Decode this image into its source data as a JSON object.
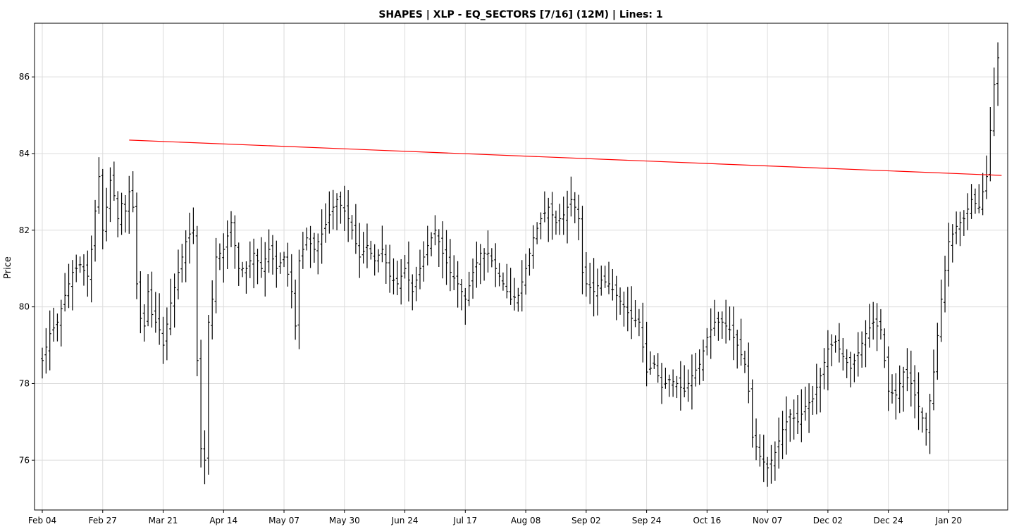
{
  "chart_data": {
    "type": "ohlc",
    "title": "SHAPES | XLP - EQ_SECTORS [7/16] (12M)  |  Lines: 1",
    "xlabel": "",
    "ylabel": "Price",
    "ylim": [
      74.7,
      87.4
    ],
    "yticks": [
      76,
      78,
      80,
      82,
      84,
      86
    ],
    "grid": true,
    "bar_color": "#000000",
    "line_color": "#ff0000",
    "x_ticks": [
      {
        "label": "Feb 04",
        "index": 0
      },
      {
        "label": "Feb 27",
        "index": 16
      },
      {
        "label": "Mar 21",
        "index": 32
      },
      {
        "label": "Apr 14",
        "index": 48
      },
      {
        "label": "May 07",
        "index": 64
      },
      {
        "label": "May 30",
        "index": 80
      },
      {
        "label": "Jun 24",
        "index": 96
      },
      {
        "label": "Jul 17",
        "index": 112
      },
      {
        "label": "Aug 08",
        "index": 128
      },
      {
        "label": "Sep 02",
        "index": 144
      },
      {
        "label": "Sep 24",
        "index": 160
      },
      {
        "label": "Oct 16",
        "index": 176
      },
      {
        "label": "Nov 07",
        "index": 192
      },
      {
        "label": "Dec 02",
        "index": 208
      },
      {
        "label": "Dec 24",
        "index": 224
      },
      {
        "label": "Jan 20",
        "index": 240
      }
    ],
    "close_path": [
      [
        0,
        78.6
      ],
      [
        2,
        79.3
      ],
      [
        4,
        79.6
      ],
      [
        6,
        80.3
      ],
      [
        8,
        80.9
      ],
      [
        10,
        81.1
      ],
      [
        12,
        80.8
      ],
      [
        13,
        81.5
      ],
      [
        14,
        82.5
      ],
      [
        15,
        83.4
      ],
      [
        16,
        82.0
      ],
      [
        17,
        82.6
      ],
      [
        18,
        83.3
      ],
      [
        19,
        82.9
      ],
      [
        20,
        82.3
      ],
      [
        21,
        82.7
      ],
      [
        22,
        82.5
      ],
      [
        23,
        83.0
      ],
      [
        24,
        82.6
      ],
      [
        25,
        80.6
      ],
      [
        26,
        79.7
      ],
      [
        27,
        79.5
      ],
      [
        28,
        80.4
      ],
      [
        29,
        79.8
      ],
      [
        31,
        79.4
      ],
      [
        32,
        79.0
      ],
      [
        34,
        80.1
      ],
      [
        36,
        80.9
      ],
      [
        38,
        81.7
      ],
      [
        39,
        81.9
      ],
      [
        40,
        82.0
      ],
      [
        41,
        78.6
      ],
      [
        42,
        76.3
      ],
      [
        43,
        76.0
      ],
      [
        44,
        79.6
      ],
      [
        45,
        80.2
      ],
      [
        46,
        81.3
      ],
      [
        48,
        81.5
      ],
      [
        50,
        82.2
      ],
      [
        52,
        81.0
      ],
      [
        54,
        81.0
      ],
      [
        56,
        81.4
      ],
      [
        58,
        81.0
      ],
      [
        60,
        81.5
      ],
      [
        62,
        81.0
      ],
      [
        64,
        81.3
      ],
      [
        66,
        80.4
      ],
      [
        67,
        79.5
      ],
      [
        68,
        81.2
      ],
      [
        70,
        81.8
      ],
      [
        72,
        81.5
      ],
      [
        74,
        81.9
      ],
      [
        76,
        82.4
      ],
      [
        78,
        82.8
      ],
      [
        80,
        82.5
      ],
      [
        81,
        82.3
      ],
      [
        82,
        82.0
      ],
      [
        84,
        81.3
      ],
      [
        86,
        81.6
      ],
      [
        88,
        81.2
      ],
      [
        90,
        81.5
      ],
      [
        92,
        80.8
      ],
      [
        94,
        80.6
      ],
      [
        96,
        81.0
      ],
      [
        98,
        80.4
      ],
      [
        100,
        81.0
      ],
      [
        102,
        81.6
      ],
      [
        104,
        82.0
      ],
      [
        106,
        81.4
      ],
      [
        108,
        80.9
      ],
      [
        110,
        80.6
      ],
      [
        112,
        80.2
      ],
      [
        114,
        80.9
      ],
      [
        116,
        81.4
      ],
      [
        118,
        81.4
      ],
      [
        120,
        81.0
      ],
      [
        122,
        80.6
      ],
      [
        124,
        80.2
      ],
      [
        126,
        80.3
      ],
      [
        128,
        81.0
      ],
      [
        130,
        81.8
      ],
      [
        132,
        82.3
      ],
      [
        134,
        82.6
      ],
      [
        136,
        82.2
      ],
      [
        138,
        82.4
      ],
      [
        140,
        82.8
      ],
      [
        141,
        82.6
      ],
      [
        142,
        82.3
      ],
      [
        143,
        80.9
      ],
      [
        144,
        80.6
      ],
      [
        146,
        80.4
      ],
      [
        148,
        80.7
      ],
      [
        150,
        80.6
      ],
      [
        152,
        80.3
      ],
      [
        154,
        80.0
      ],
      [
        156,
        79.7
      ],
      [
        158,
        79.6
      ],
      [
        160,
        78.3
      ],
      [
        162,
        78.5
      ],
      [
        164,
        77.9
      ],
      [
        166,
        78.1
      ],
      [
        168,
        78.0
      ],
      [
        170,
        77.8
      ],
      [
        172,
        78.2
      ],
      [
        174,
        78.5
      ],
      [
        176,
        79.2
      ],
      [
        178,
        79.6
      ],
      [
        180,
        79.6
      ],
      [
        182,
        79.4
      ],
      [
        184,
        79.0
      ],
      [
        186,
        78.5
      ],
      [
        187,
        77.8
      ],
      [
        188,
        76.6
      ],
      [
        190,
        76.1
      ],
      [
        192,
        75.8
      ],
      [
        194,
        76.2
      ],
      [
        196,
        76.8
      ],
      [
        198,
        77.2
      ],
      [
        200,
        77.0
      ],
      [
        202,
        77.4
      ],
      [
        204,
        77.6
      ],
      [
        206,
        78.2
      ],
      [
        208,
        78.9
      ],
      [
        210,
        79.1
      ],
      [
        212,
        78.7
      ],
      [
        214,
        78.4
      ],
      [
        216,
        78.8
      ],
      [
        218,
        79.3
      ],
      [
        220,
        79.6
      ],
      [
        222,
        79.4
      ],
      [
        224,
        77.8
      ],
      [
        226,
        77.7
      ],
      [
        228,
        78.3
      ],
      [
        230,
        78.0
      ],
      [
        232,
        77.4
      ],
      [
        234,
        76.8
      ],
      [
        236,
        78.3
      ],
      [
        238,
        80.2
      ],
      [
        240,
        81.7
      ],
      [
        242,
        82.1
      ],
      [
        244,
        82.3
      ],
      [
        246,
        82.8
      ],
      [
        248,
        82.6
      ],
      [
        250,
        83.4
      ],
      [
        252,
        85.8
      ],
      [
        253,
        86.5
      ]
    ],
    "lines": [
      {
        "points": [
          [
            23,
            84.35
          ],
          [
            254,
            83.43
          ]
        ]
      }
    ]
  }
}
